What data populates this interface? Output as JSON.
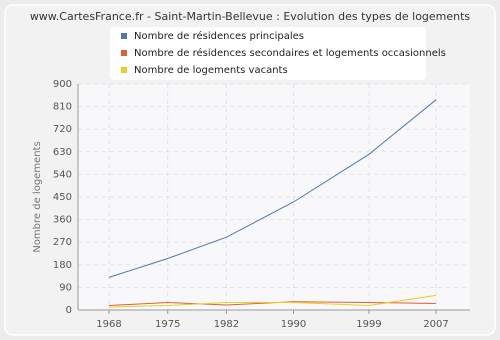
{
  "chart_data": {
    "type": "line",
    "title": "www.CartesFrance.fr - Saint-Martin-Bellevue : Evolution des types de logements",
    "y_label": "Nombre de logements",
    "x": [
      1968,
      1975,
      1982,
      1990,
      1999,
      2007
    ],
    "series": [
      {
        "name": "Nombre de résidences principales",
        "color": "#4a78b0",
        "values": [
          130,
          205,
          290,
          430,
          620,
          837
        ]
      },
      {
        "name": "Nombre de résidences secondaires et logements occasionnels",
        "color": "#e0603a",
        "values": [
          18,
          30,
          20,
          33,
          30,
          26
        ]
      },
      {
        "name": "Nombre de logements vacants",
        "color": "#e8d020",
        "values": [
          12,
          18,
          30,
          30,
          18,
          58
        ]
      }
    ],
    "xlim": [
      1964.3,
      2011.05
    ],
    "xticks": [
      1968,
      1975,
      1982,
      1990,
      1999,
      2007
    ],
    "ylim": [
      0,
      900
    ],
    "yticks": [
      0,
      90,
      180,
      270,
      360,
      450,
      540,
      630,
      720,
      810,
      900
    ],
    "grid": true
  }
}
